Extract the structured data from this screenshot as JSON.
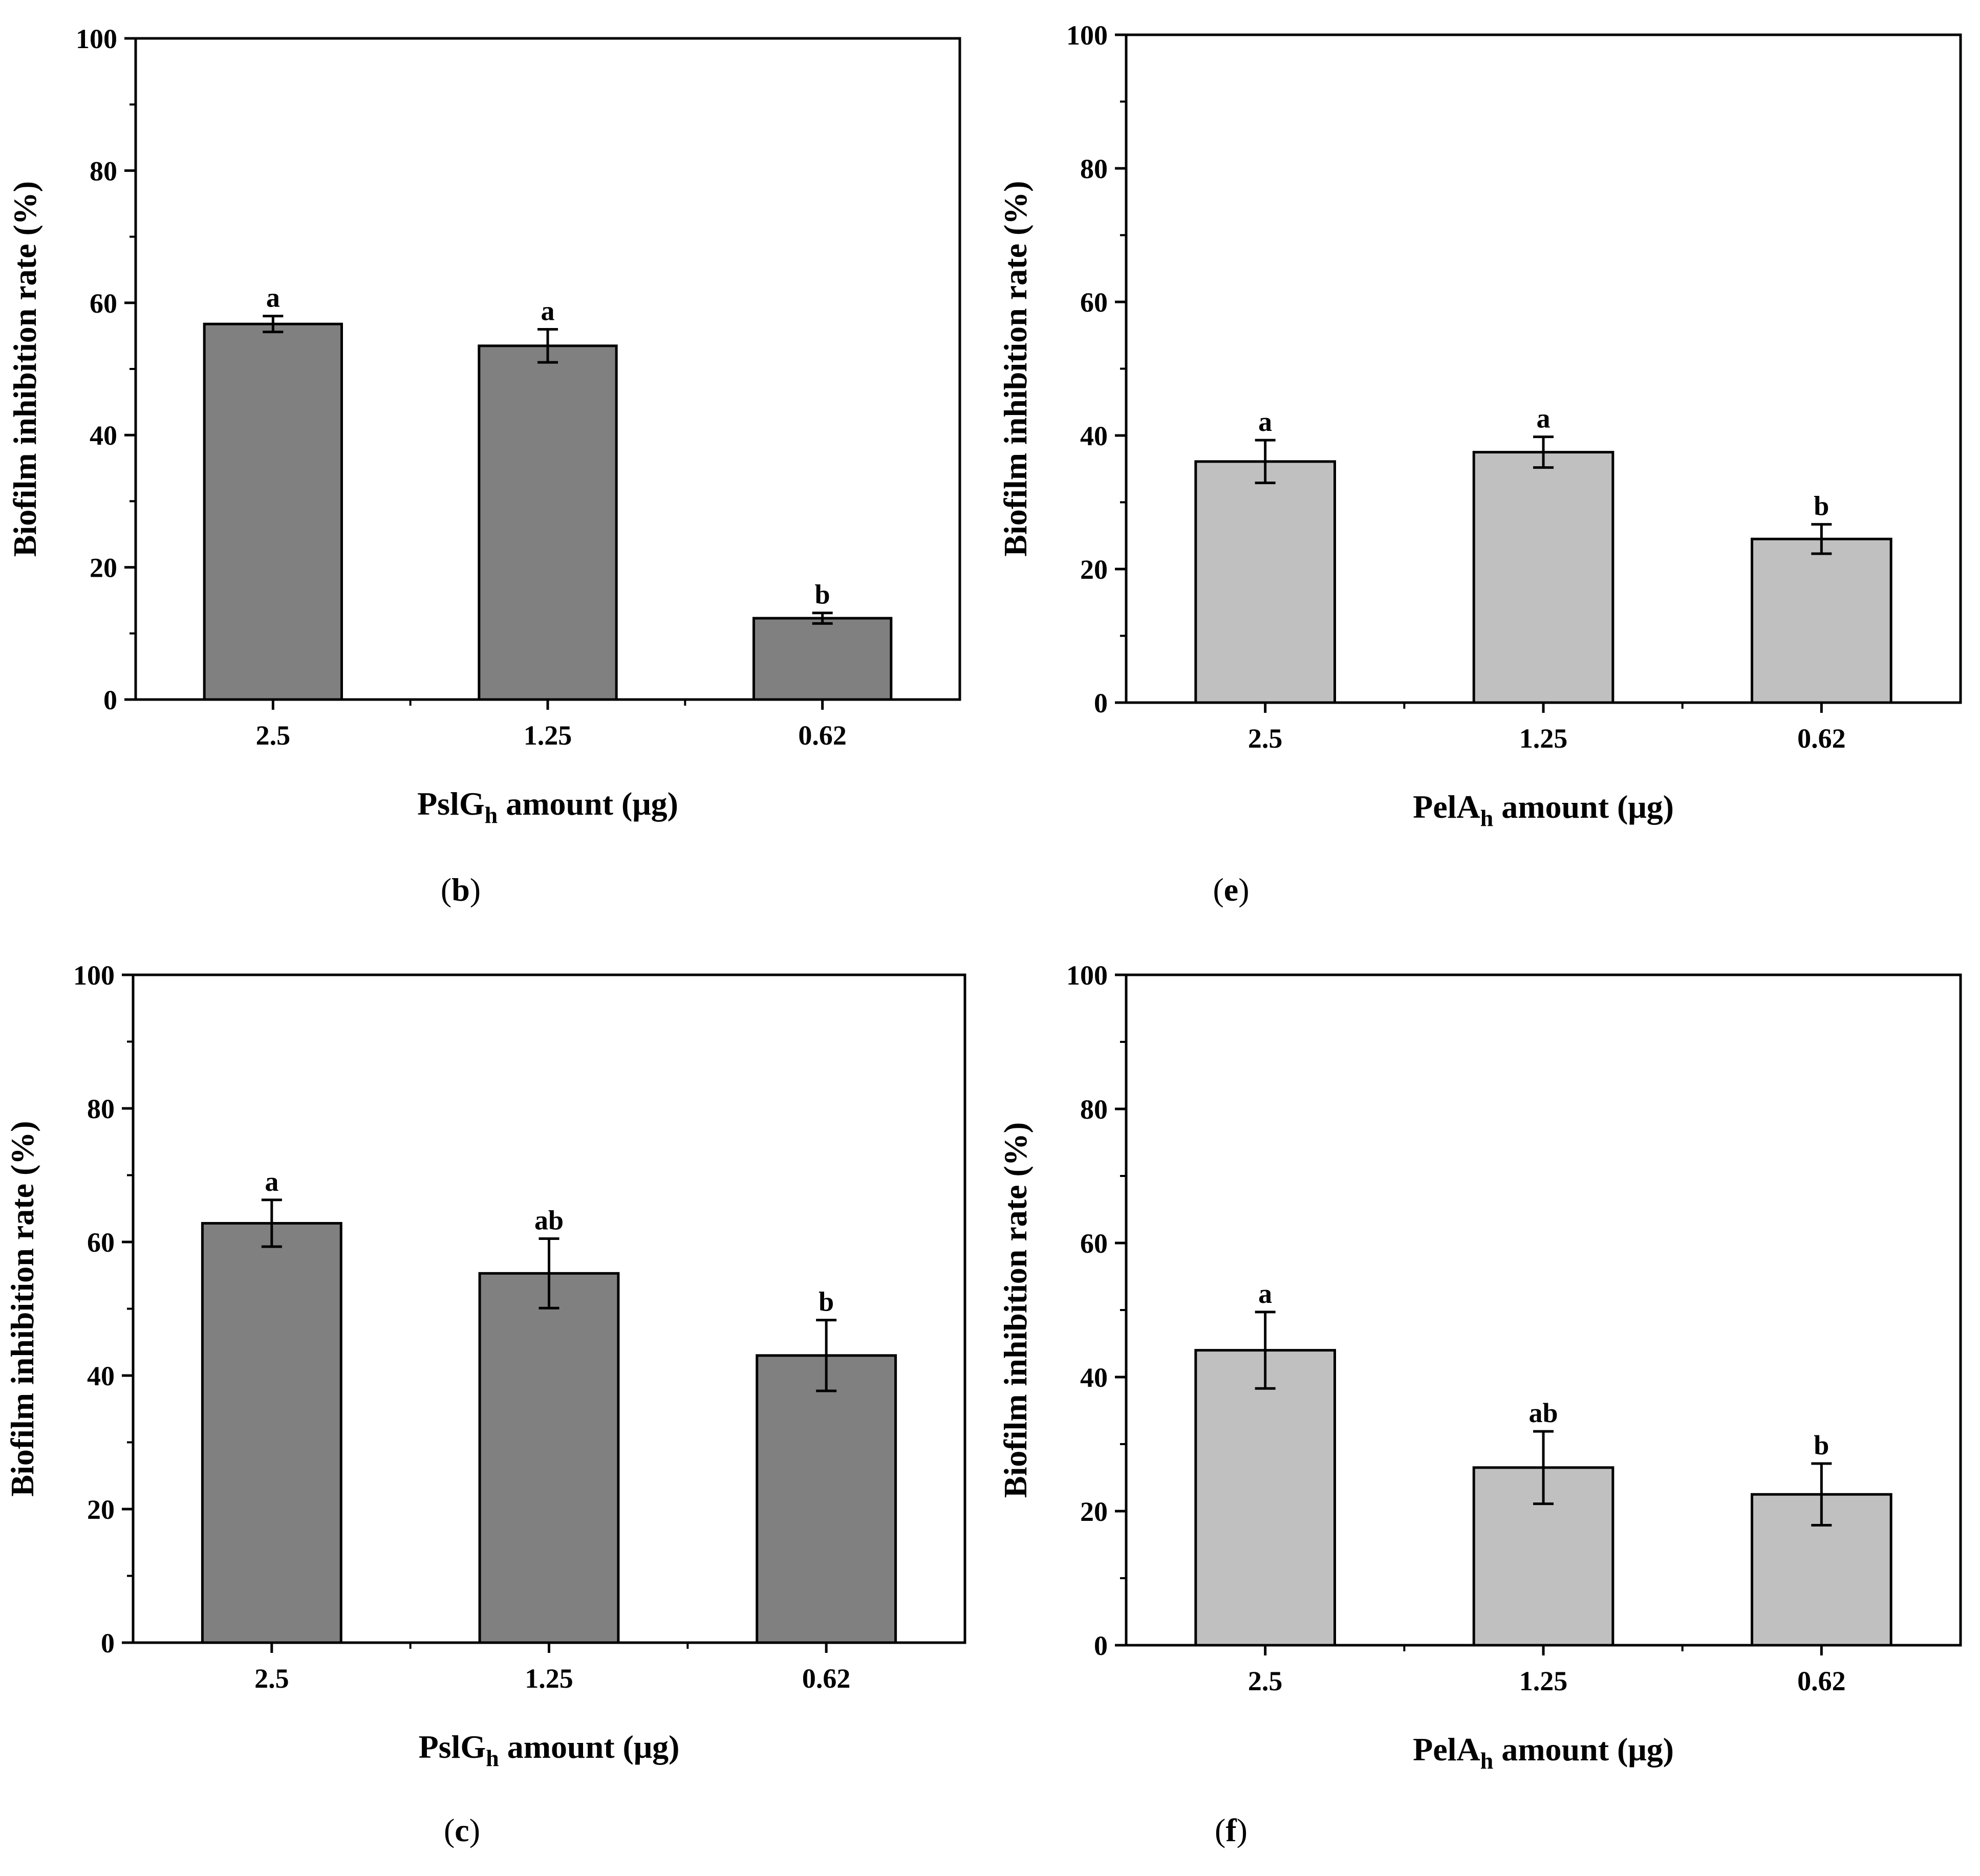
{
  "figure": {
    "panels": [
      "b",
      "e",
      "c",
      "f"
    ]
  },
  "chart_data": [
    {
      "panel": "b",
      "type": "bar",
      "caption": "b",
      "categories": [
        "2.5",
        "1.25",
        "0.62"
      ],
      "values": [
        56.8,
        53.5,
        12.3
      ],
      "errors": [
        1.2,
        2.5,
        0.8
      ],
      "significance": [
        "a",
        "a",
        "b"
      ],
      "xlabel": "PslG amount (μg)",
      "xlabel_main": "PslG",
      "xlabel_sub": "h",
      "xlabel_rest": " amount (μg)",
      "ylabel": "Biofilm inhibition rate (%)",
      "ylim": [
        0,
        100
      ],
      "yticks": [
        "0",
        "20",
        "40",
        "60",
        "80",
        "100"
      ],
      "bar_color": "#808080"
    },
    {
      "panel": "e",
      "type": "bar",
      "caption": "e",
      "categories": [
        "2.5",
        "1.25",
        "0.62"
      ],
      "values": [
        36.1,
        37.5,
        24.5
      ],
      "errors": [
        3.2,
        2.3,
        2.2
      ],
      "significance": [
        "a",
        "a",
        "b"
      ],
      "xlabel": "PelA amount (μg)",
      "xlabel_main": "PelA",
      "xlabel_sub": "h",
      "xlabel_rest": " amount (μg)",
      "ylabel": "Biofilm inhibition rate (%)",
      "ylim": [
        0,
        100
      ],
      "yticks": [
        "0",
        "20",
        "40",
        "60",
        "80",
        "100"
      ],
      "bar_color": "#c0c0c0"
    },
    {
      "panel": "c",
      "type": "bar",
      "caption": "c",
      "categories": [
        "2.5",
        "1.25",
        "0.62"
      ],
      "values": [
        62.8,
        55.3,
        43.0
      ],
      "errors": [
        3.5,
        5.2,
        5.3
      ],
      "significance": [
        "a",
        "ab",
        "b"
      ],
      "xlabel": "PslG amount (μg)",
      "xlabel_main": "PslG",
      "xlabel_sub": "h",
      "xlabel_rest": " amount (μg)",
      "ylabel": "Biofilm inhibition rate (%)",
      "ylim": [
        0,
        100
      ],
      "yticks": [
        "0",
        "20",
        "40",
        "60",
        "80",
        "100"
      ],
      "bar_color": "#808080"
    },
    {
      "panel": "f",
      "type": "bar",
      "caption": "f",
      "categories": [
        "2.5",
        "1.25",
        "0.62"
      ],
      "values": [
        44.0,
        26.5,
        22.5
      ],
      "errors": [
        5.7,
        5.4,
        4.6
      ],
      "significance": [
        "a",
        "ab",
        "b"
      ],
      "xlabel": "PelA amount (μg)",
      "xlabel_main": "PelA",
      "xlabel_sub": "h",
      "xlabel_rest": " amount (μg)",
      "ylabel": "Biofilm inhibition rate (%)",
      "ylim": [
        0,
        100
      ],
      "yticks": [
        "0",
        "20",
        "40",
        "60",
        "80",
        "100"
      ],
      "bar_color": "#c0c0c0"
    }
  ]
}
